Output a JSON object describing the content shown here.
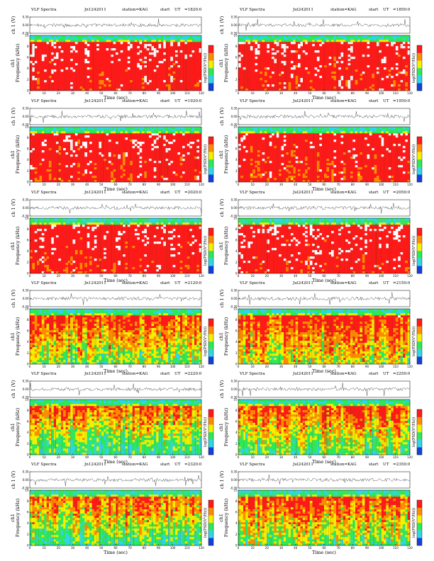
{
  "figure": {
    "title_prefix": "VLF Spectra",
    "station_label": "station=KAG",
    "start_label": "start",
    "ut_label": "UT",
    "colorbar_label": "log(PSD(V²/Hz))",
    "waveform_ylabel": "ch 1 (V)",
    "spectrogram_ylabel_top": "ch1",
    "spectrogram_ylabel": "Frequency (kHz)",
    "xlabel": "Time (sec)"
  },
  "colors": {
    "red": "#ff1a1a",
    "orange": "#ff8c00",
    "yellow": "#f3f000",
    "green": "#2ee85a",
    "cyan": "#2fd6e8",
    "blue": "#1442d8",
    "white": "#ffffff",
    "waveform": "#111111"
  },
  "chart_data": [
    {
      "type": "heatmap",
      "date_text": "Jn1242011",
      "start_ut": "=1820:0",
      "xlim": [
        0,
        120
      ],
      "xticks": [
        0,
        10,
        20,
        30,
        40,
        50,
        60,
        70,
        80,
        90,
        100,
        110,
        120
      ],
      "freq_ylim": [
        0,
        10
      ],
      "freq_ticks": [
        0,
        2,
        4,
        6,
        8,
        10
      ],
      "wave_ylim": [
        -0.3,
        0.3
      ],
      "wave_ticks": [
        "-0.30",
        "0.00",
        "0.30"
      ],
      "noise_level": 0.85
    },
    {
      "type": "heatmap",
      "date_text": "Jul242011",
      "start_ut": "=1850:0",
      "xlim": [
        0,
        120
      ],
      "xticks": [
        0,
        10,
        20,
        30,
        40,
        50,
        60,
        70,
        80,
        90,
        100,
        110,
        120
      ],
      "freq_ylim": [
        0,
        10
      ],
      "freq_ticks": [
        0,
        2,
        4,
        6,
        8,
        10
      ],
      "wave_ylim": [
        -0.3,
        0.3
      ],
      "wave_ticks": [
        "-0.30",
        "0.00",
        "0.30"
      ],
      "noise_level": 0.85
    },
    {
      "type": "heatmap",
      "date_text": "Jn1242011",
      "start_ut": "=1920:0",
      "xlim": [
        0,
        120
      ],
      "xticks": [
        0,
        10,
        20,
        30,
        40,
        50,
        60,
        70,
        80,
        90,
        100,
        110,
        120
      ],
      "freq_ylim": [
        0,
        10
      ],
      "freq_ticks": [
        0,
        2,
        4,
        6,
        8,
        10
      ],
      "wave_ylim": [
        -0.3,
        0.3
      ],
      "wave_ticks": [
        "-0.30",
        "0.00",
        "0.30"
      ],
      "noise_level": 0.82
    },
    {
      "type": "heatmap",
      "date_text": "Jul242011",
      "start_ut": "=1950:0",
      "xlim": [
        0,
        120
      ],
      "xticks": [
        0,
        10,
        20,
        30,
        40,
        50,
        60,
        70,
        80,
        90,
        100,
        110,
        120
      ],
      "freq_ylim": [
        0,
        10
      ],
      "freq_ticks": [
        0,
        2,
        4,
        6,
        8,
        10
      ],
      "wave_ylim": [
        -0.3,
        0.3
      ],
      "wave_ticks": [
        "-0.30",
        "0.00",
        "0.30"
      ],
      "noise_level": 0.82
    },
    {
      "type": "heatmap",
      "date_text": "Jn1242011",
      "start_ut": "=2020:0",
      "xlim": [
        0,
        120
      ],
      "xticks": [
        0,
        10,
        20,
        30,
        40,
        50,
        60,
        70,
        80,
        90,
        100,
        110,
        120
      ],
      "freq_ylim": [
        0,
        10
      ],
      "freq_ticks": [
        0,
        2,
        4,
        6,
        8,
        10
      ],
      "wave_ylim": [
        -0.3,
        0.3
      ],
      "wave_ticks": [
        "-0.30",
        "0.00",
        "0.30"
      ],
      "noise_level": 0.84
    },
    {
      "type": "heatmap",
      "date_text": "Jul242011",
      "start_ut": "=2050:0",
      "xlim": [
        0,
        120
      ],
      "xticks": [
        0,
        10,
        20,
        30,
        40,
        50,
        60,
        70,
        80,
        90,
        100,
        110,
        120
      ],
      "freq_ylim": [
        0,
        10
      ],
      "freq_ticks": [
        0,
        2,
        4,
        6,
        8,
        10
      ],
      "wave_ylim": [
        -0.3,
        0.3
      ],
      "wave_ticks": [
        "-0.30",
        "0.00",
        "0.30"
      ],
      "noise_level": 0.84
    },
    {
      "type": "heatmap",
      "date_text": "Jn1242011",
      "start_ut": "=2120:0",
      "xlim": [
        0,
        120
      ],
      "xticks": [
        0,
        10,
        20,
        30,
        40,
        50,
        60,
        70,
        80,
        90,
        100,
        110,
        120
      ],
      "freq_ylim": [
        0,
        10
      ],
      "freq_ticks": [
        0,
        2,
        4,
        6,
        8,
        10
      ],
      "wave_ylim": [
        -0.3,
        0.3
      ],
      "wave_ticks": [
        "-0.30",
        "0.00",
        "0.30"
      ],
      "noise_level": 0.58
    },
    {
      "type": "heatmap",
      "date_text": "Jul242011",
      "start_ut": "=2150:0",
      "xlim": [
        0,
        120
      ],
      "xticks": [
        0,
        10,
        20,
        30,
        40,
        50,
        60,
        70,
        80,
        90,
        100,
        110,
        120
      ],
      "freq_ylim": [
        0,
        10
      ],
      "freq_ticks": [
        0,
        2,
        4,
        6,
        8,
        10
      ],
      "wave_ylim": [
        -0.3,
        0.3
      ],
      "wave_ticks": [
        "-0.30",
        "0.00",
        "0.30"
      ],
      "noise_level": 0.62
    },
    {
      "type": "heatmap",
      "date_text": "Jn1242011",
      "start_ut": "=2220:0",
      "xlim": [
        0,
        120
      ],
      "xticks": [
        0,
        10,
        20,
        30,
        40,
        50,
        60,
        70,
        80,
        90,
        100,
        110,
        120
      ],
      "freq_ylim": [
        0,
        10
      ],
      "freq_ticks": [
        0,
        2,
        4,
        6,
        8,
        10
      ],
      "wave_ylim": [
        -0.3,
        0.3
      ],
      "wave_ticks": [
        "-0.30",
        "0.00",
        "0.30"
      ],
      "noise_level": 0.5
    },
    {
      "type": "heatmap",
      "date_text": "Jul242011",
      "start_ut": "=2250:0",
      "xlim": [
        0,
        120
      ],
      "xticks": [
        0,
        10,
        20,
        30,
        40,
        50,
        60,
        70,
        80,
        90,
        100,
        110,
        120
      ],
      "freq_ylim": [
        0,
        10
      ],
      "freq_ticks": [
        0,
        2,
        4,
        6,
        8,
        10
      ],
      "wave_ylim": [
        -0.3,
        0.3
      ],
      "wave_ticks": [
        "-0.30",
        "0.00",
        "0.30"
      ],
      "noise_level": 0.55
    },
    {
      "type": "heatmap",
      "date_text": "Jn1242011",
      "start_ut": "=2320:0",
      "xlim": [
        0,
        120
      ],
      "xticks": [
        0,
        10,
        20,
        30,
        40,
        50,
        60,
        70,
        80,
        90,
        100,
        110,
        120
      ],
      "freq_ylim": [
        0,
        10
      ],
      "freq_ticks": [
        0,
        2,
        4,
        6,
        8,
        10
      ],
      "wave_ylim": [
        -0.3,
        0.3
      ],
      "wave_ticks": [
        "-0.30",
        "0.00",
        "0.30"
      ],
      "noise_level": 0.52
    },
    {
      "type": "heatmap",
      "date_text": "Jul242011",
      "start_ut": "=2350:0",
      "xlim": [
        0,
        120
      ],
      "xticks": [
        0,
        10,
        20,
        30,
        40,
        50,
        60,
        70,
        80,
        90,
        100,
        110,
        120
      ],
      "freq_ylim": [
        0,
        10
      ],
      "freq_ticks": [
        0,
        2,
        4,
        6,
        8,
        10
      ],
      "wave_ylim": [
        -0.3,
        0.3
      ],
      "wave_ticks": [
        "-0.30",
        "0.00",
        "0.30"
      ],
      "noise_level": 0.58
    }
  ]
}
